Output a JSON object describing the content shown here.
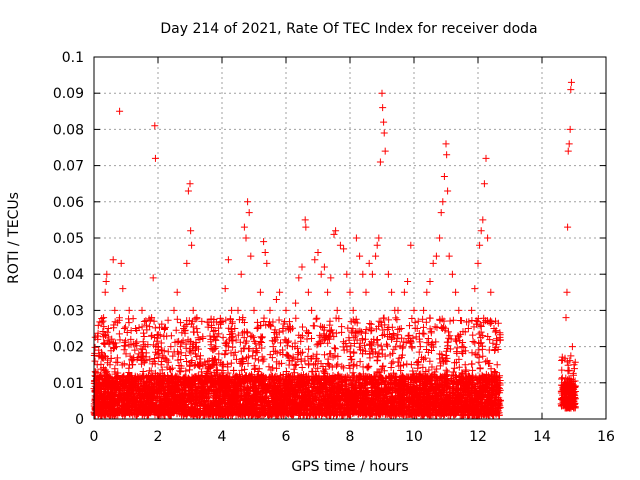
{
  "chart_data": {
    "type": "scatter",
    "title": "Day 214 of 2021, Rate Of TEC Index for receiver doda",
    "xlabel": "GPS time / hours",
    "ylabel": "ROTI / TECUs",
    "xlim": [
      0,
      16
    ],
    "ylim": [
      0,
      0.1
    ],
    "xticks": [
      0,
      2,
      4,
      6,
      8,
      10,
      12,
      14,
      16
    ],
    "xtick_labels": [
      "0",
      "2",
      "4",
      "6",
      "8",
      "10",
      "12",
      "14",
      "16"
    ],
    "yticks": [
      0,
      0.01,
      0.02,
      0.03,
      0.04,
      0.05,
      0.06,
      0.07,
      0.08,
      0.09,
      0.1
    ],
    "ytick_labels": [
      "0",
      "0.01",
      "0.02",
      "0.03",
      "0.04",
      "0.05",
      "0.06",
      "0.07",
      "0.08",
      "0.09",
      "0.1"
    ],
    "grid": true,
    "marker": "+",
    "color": "#ff0000",
    "series": [
      {
        "points": [
          [
            0.05,
            0.008
          ],
          [
            0.1,
            0.015
          ],
          [
            0.12,
            0.022
          ],
          [
            0.15,
            0.005
          ],
          [
            0.2,
            0.012
          ],
          [
            0.25,
            0.018
          ],
          [
            0.3,
            0.028
          ],
          [
            0.35,
            0.035
          ],
          [
            0.38,
            0.038
          ],
          [
            0.4,
            0.04
          ],
          [
            0.45,
            0.025
          ],
          [
            0.5,
            0.015
          ],
          [
            0.55,
            0.01
          ],
          [
            0.6,
            0.044
          ],
          [
            0.65,
            0.03
          ],
          [
            0.7,
            0.02
          ],
          [
            0.75,
            0.012
          ],
          [
            0.8,
            0.085
          ],
          [
            0.85,
            0.043
          ],
          [
            0.9,
            0.036
          ],
          [
            0.95,
            0.025
          ],
          [
            1.0,
            0.018
          ],
          [
            1.05,
            0.008
          ],
          [
            1.1,
            0.03
          ],
          [
            1.15,
            0.022
          ],
          [
            1.2,
            0.015
          ],
          [
            1.3,
            0.025
          ],
          [
            1.4,
            0.018
          ],
          [
            1.5,
            0.03
          ],
          [
            1.6,
            0.02
          ],
          [
            1.7,
            0.012
          ],
          [
            1.8,
            0.028
          ],
          [
            1.85,
            0.039
          ],
          [
            1.9,
            0.081
          ],
          [
            1.92,
            0.072
          ],
          [
            2.0,
            0.02
          ],
          [
            2.1,
            0.015
          ],
          [
            2.2,
            0.025
          ],
          [
            2.3,
            0.012
          ],
          [
            2.4,
            0.02
          ],
          [
            2.5,
            0.03
          ],
          [
            2.6,
            0.035
          ],
          [
            2.7,
            0.02
          ],
          [
            2.8,
            0.025
          ],
          [
            2.9,
            0.043
          ],
          [
            2.95,
            0.063
          ],
          [
            3.0,
            0.065
          ],
          [
            3.02,
            0.052
          ],
          [
            3.05,
            0.048
          ],
          [
            3.1,
            0.03
          ],
          [
            3.2,
            0.02
          ],
          [
            3.3,
            0.015
          ],
          [
            3.4,
            0.01
          ],
          [
            3.5,
            0.012
          ],
          [
            3.6,
            0.008
          ],
          [
            3.7,
            0.015
          ],
          [
            3.8,
            0.01
          ],
          [
            3.9,
            0.018
          ],
          [
            4.0,
            0.012
          ],
          [
            4.1,
            0.036
          ],
          [
            4.2,
            0.044
          ],
          [
            4.3,
            0.03
          ],
          [
            4.4,
            0.025
          ],
          [
            4.5,
            0.03
          ],
          [
            4.6,
            0.04
          ],
          [
            4.7,
            0.053
          ],
          [
            4.75,
            0.05
          ],
          [
            4.8,
            0.06
          ],
          [
            4.85,
            0.057
          ],
          [
            4.9,
            0.045
          ],
          [
            5.0,
            0.03
          ],
          [
            5.1,
            0.025
          ],
          [
            5.2,
            0.035
          ],
          [
            5.3,
            0.049
          ],
          [
            5.35,
            0.046
          ],
          [
            5.4,
            0.043
          ],
          [
            5.5,
            0.03
          ],
          [
            5.6,
            0.02
          ],
          [
            5.7,
            0.033
          ],
          [
            5.8,
            0.035
          ],
          [
            5.9,
            0.025
          ],
          [
            6.0,
            0.03
          ],
          [
            6.1,
            0.025
          ],
          [
            6.2,
            0.02
          ],
          [
            6.3,
            0.032
          ],
          [
            6.4,
            0.039
          ],
          [
            6.5,
            0.042
          ],
          [
            6.6,
            0.055
          ],
          [
            6.62,
            0.053
          ],
          [
            6.7,
            0.035
          ],
          [
            6.8,
            0.03
          ],
          [
            6.9,
            0.044
          ],
          [
            7.0,
            0.046
          ],
          [
            7.1,
            0.04
          ],
          [
            7.2,
            0.042
          ],
          [
            7.3,
            0.035
          ],
          [
            7.4,
            0.039
          ],
          [
            7.5,
            0.051
          ],
          [
            7.55,
            0.052
          ],
          [
            7.6,
            0.03
          ],
          [
            7.7,
            0.048
          ],
          [
            7.8,
            0.047
          ],
          [
            7.9,
            0.04
          ],
          [
            8.0,
            0.035
          ],
          [
            8.1,
            0.03
          ],
          [
            8.2,
            0.05
          ],
          [
            8.3,
            0.045
          ],
          [
            8.4,
            0.04
          ],
          [
            8.5,
            0.035
          ],
          [
            8.6,
            0.043
          ],
          [
            8.7,
            0.04
          ],
          [
            8.8,
            0.045
          ],
          [
            8.85,
            0.048
          ],
          [
            8.9,
            0.05
          ],
          [
            8.95,
            0.071
          ],
          [
            9.0,
            0.09
          ],
          [
            9.02,
            0.086
          ],
          [
            9.05,
            0.082
          ],
          [
            9.07,
            0.079
          ],
          [
            9.1,
            0.074
          ],
          [
            9.2,
            0.04
          ],
          [
            9.3,
            0.035
          ],
          [
            9.4,
            0.03
          ],
          [
            9.5,
            0.03
          ],
          [
            9.6,
            0.025
          ],
          [
            9.7,
            0.035
          ],
          [
            9.8,
            0.038
          ],
          [
            9.9,
            0.048
          ],
          [
            10.0,
            0.03
          ],
          [
            10.1,
            0.025
          ],
          [
            10.2,
            0.02
          ],
          [
            10.3,
            0.03
          ],
          [
            10.4,
            0.035
          ],
          [
            10.5,
            0.038
          ],
          [
            10.6,
            0.043
          ],
          [
            10.7,
            0.045
          ],
          [
            10.8,
            0.05
          ],
          [
            10.85,
            0.057
          ],
          [
            10.9,
            0.06
          ],
          [
            10.95,
            0.067
          ],
          [
            11.0,
            0.076
          ],
          [
            11.02,
            0.073
          ],
          [
            11.05,
            0.063
          ],
          [
            11.1,
            0.045
          ],
          [
            11.2,
            0.04
          ],
          [
            11.3,
            0.035
          ],
          [
            11.4,
            0.03
          ],
          [
            11.5,
            0.02
          ],
          [
            11.6,
            0.015
          ],
          [
            11.7,
            0.025
          ],
          [
            11.8,
            0.03
          ],
          [
            11.9,
            0.036
          ],
          [
            12.0,
            0.043
          ],
          [
            12.05,
            0.048
          ],
          [
            12.1,
            0.052
          ],
          [
            12.15,
            0.055
          ],
          [
            12.2,
            0.065
          ],
          [
            12.25,
            0.072
          ],
          [
            12.3,
            0.05
          ],
          [
            12.4,
            0.035
          ],
          [
            12.5,
            0.025
          ],
          [
            12.6,
            0.015
          ],
          [
            12.65,
            0.01
          ],
          [
            12.7,
            0.005
          ],
          [
            14.75,
            0.028
          ],
          [
            14.78,
            0.035
          ],
          [
            14.8,
            0.053
          ],
          [
            14.82,
            0.074
          ],
          [
            14.85,
            0.076
          ],
          [
            14.88,
            0.08
          ],
          [
            14.9,
            0.091
          ],
          [
            14.92,
            0.093
          ],
          [
            14.95,
            0.02
          ],
          [
            15.0,
            0.015
          ]
        ]
      }
    ],
    "dense_bands": [
      {
        "x_from": 0.0,
        "x_to": 12.7,
        "y_floor": 0.001,
        "y_core_top": 0.012,
        "y_spread_top": 0.028
      },
      {
        "x_from": 14.6,
        "x_to": 15.05,
        "y_floor": 0.003,
        "y_core_top": 0.01,
        "y_spread_top": 0.018
      }
    ]
  }
}
